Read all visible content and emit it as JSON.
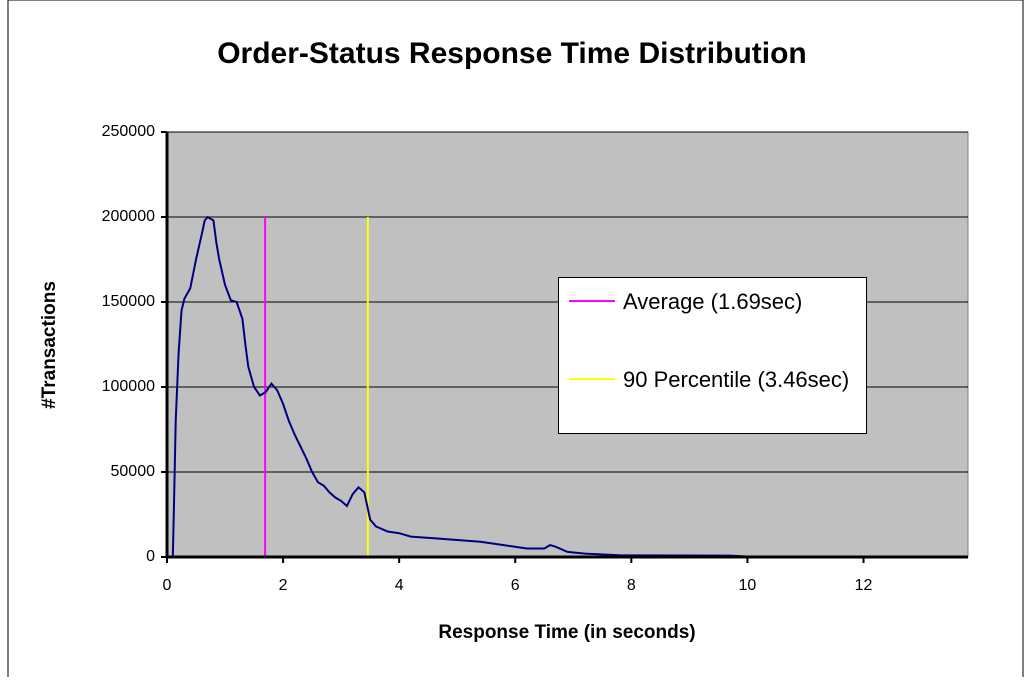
{
  "chart_data": {
    "type": "line",
    "title": "Order-Status Response Time Distribution",
    "x_label": "Response Time (in seconds)",
    "y_label": "#Transactions",
    "xlim": [
      0,
      13.8
    ],
    "xticks": [
      0,
      2,
      4,
      6,
      8,
      10,
      12
    ],
    "ylim": [
      0,
      250000
    ],
    "yticks": [
      0,
      50000,
      100000,
      150000,
      200000,
      250000
    ],
    "grid": true,
    "plot_background": "#c0c0c0",
    "series": [
      {
        "color": "#000080",
        "x": [
          0.1,
          0.12,
          0.15,
          0.2,
          0.25,
          0.3,
          0.4,
          0.5,
          0.6,
          0.65,
          0.7,
          0.8,
          0.85,
          0.9,
          1.0,
          1.1,
          1.2,
          1.3,
          1.35,
          1.4,
          1.5,
          1.6,
          1.7,
          1.8,
          1.9,
          2.0,
          2.1,
          2.2,
          2.3,
          2.4,
          2.5,
          2.6,
          2.7,
          2.8,
          2.9,
          3.0,
          3.1,
          3.2,
          3.3,
          3.4,
          3.45,
          3.5,
          3.6,
          3.8,
          4.0,
          4.2,
          4.6,
          5.0,
          5.4,
          5.8,
          6.2,
          6.5,
          6.6,
          6.7,
          6.9,
          7.2,
          7.8,
          9.7,
          10.0,
          13.8
        ],
        "values": [
          0,
          30000,
          80000,
          120000,
          145000,
          152000,
          158000,
          175000,
          190000,
          198000,
          200000,
          198000,
          185000,
          175000,
          160000,
          151000,
          150000,
          140000,
          125000,
          112000,
          100000,
          95000,
          97000,
          102000,
          98000,
          90000,
          80000,
          72000,
          65000,
          58000,
          50000,
          44000,
          42000,
          38000,
          35000,
          33000,
          30000,
          37000,
          41000,
          38000,
          30000,
          22000,
          18000,
          15000,
          14000,
          12000,
          11000,
          10000,
          9000,
          7000,
          5000,
          5000,
          7000,
          6000,
          3000,
          2000,
          1000,
          800,
          300,
          0
        ]
      }
    ],
    "reference_lines": [
      {
        "name": "Average (1.69sec)",
        "color": "#ff00ff",
        "x": 1.69
      },
      {
        "name": "90 Percentile (3.46sec)",
        "color": "#ffff00",
        "x": 3.46
      }
    ]
  }
}
